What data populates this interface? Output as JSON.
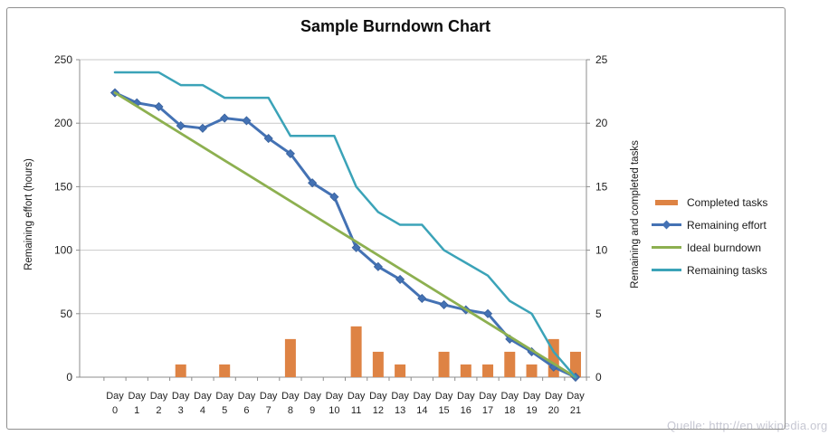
{
  "watermark": "Quelle: http://en.wikipedia.org",
  "legend": [
    {
      "label": "Completed tasks",
      "type": "bar",
      "color": "#de8344"
    },
    {
      "label": "Remaining effort",
      "type": "line-marker",
      "color": "#4472b4"
    },
    {
      "label": "Ideal burndown",
      "type": "line",
      "color": "#8db050"
    },
    {
      "label": "Remaining tasks",
      "type": "line",
      "color": "#3ba3b8"
    }
  ],
  "chart_data": {
    "type": "combo-bar-line",
    "title": "Sample Burndown Chart",
    "categories": [
      "Day 0",
      "Day 1",
      "Day 2",
      "Day 3",
      "Day 4",
      "Day 5",
      "Day 6",
      "Day 7",
      "Day 8",
      "Day 9",
      "Day 10",
      "Day 11",
      "Day 12",
      "Day 13",
      "Day 14",
      "Day 15",
      "Day 16",
      "Day 17",
      "Day 18",
      "Day 19",
      "Day 20",
      "Day 21"
    ],
    "left_axis": {
      "label": "Remaining effort (hours)",
      "min": 0,
      "max": 250,
      "ticks": [
        0,
        50,
        100,
        150,
        200,
        250
      ]
    },
    "right_axis": {
      "label": "Remaining and completed tasks",
      "min": 0,
      "max": 25,
      "ticks": [
        0,
        5,
        10,
        15,
        20,
        25
      ]
    },
    "grid": true,
    "legend_position": "right",
    "series": [
      {
        "name": "Completed tasks",
        "type": "bar",
        "axis": "right",
        "color": "#de8344",
        "values": [
          0,
          0,
          0,
          1,
          0,
          1,
          0,
          0,
          3,
          0,
          0,
          4,
          2,
          1,
          0,
          2,
          1,
          1,
          2,
          1,
          3,
          2
        ]
      },
      {
        "name": "Remaining effort",
        "type": "line",
        "marker": "diamond",
        "axis": "left",
        "color": "#4472b4",
        "stroke_width": 3,
        "values": [
          224,
          216,
          213,
          198,
          196,
          204,
          202,
          188,
          176,
          153,
          142,
          102,
          87,
          77,
          62,
          57,
          53,
          50,
          30,
          20,
          8,
          0
        ]
      },
      {
        "name": "Ideal burndown",
        "type": "line",
        "axis": "left",
        "color": "#8db050",
        "stroke_width": 2.8,
        "values": [
          224,
          213.33,
          202.67,
          192,
          181.33,
          170.67,
          160,
          149.33,
          138.67,
          128,
          117.33,
          106.67,
          96,
          85.33,
          74.67,
          64,
          53.33,
          42.67,
          32,
          21.33,
          10.67,
          0
        ]
      },
      {
        "name": "Remaining tasks",
        "type": "line",
        "axis": "right",
        "color": "#3ba3b8",
        "stroke_width": 2.5,
        "values": [
          24,
          24,
          24,
          23,
          23,
          22,
          22,
          22,
          19,
          19,
          19,
          15,
          13,
          12,
          12,
          10,
          9,
          8,
          6,
          5,
          2,
          0
        ]
      }
    ]
  }
}
